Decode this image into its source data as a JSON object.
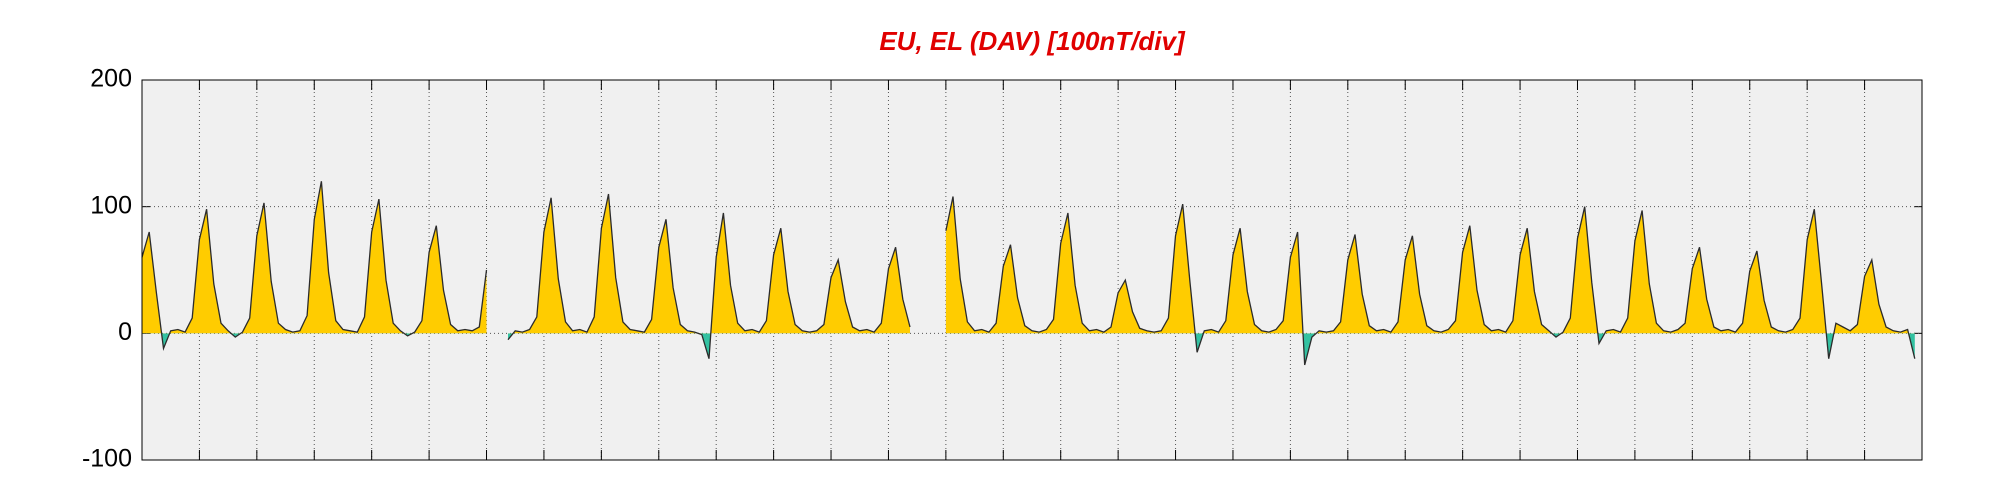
{
  "chart_data": {
    "type": "line",
    "title": "EU, EL (DAV)  [100nT/div]",
    "xlim": [
      0,
      744
    ],
    "xticks": [
      0,
      24,
      48,
      72,
      96,
      120,
      144,
      168,
      192,
      216,
      240,
      264,
      288,
      312,
      336,
      360,
      384,
      408,
      432,
      456,
      480,
      504,
      528,
      552,
      576,
      600,
      624,
      648,
      672,
      696,
      720,
      744
    ],
    "ylim": [
      -100,
      200
    ],
    "yticks": [
      -100,
      0,
      100,
      200
    ],
    "grid": true,
    "color": "#2b2b2b",
    "fill_colors": {
      "positive": "#ffcc00",
      "negative": "#33c2a2"
    },
    "x": [
      0,
      3,
      6,
      9,
      12,
      15,
      18,
      21,
      24,
      27,
      30,
      33,
      36,
      39,
      42,
      45,
      48,
      51,
      54,
      57,
      60,
      63,
      66,
      69,
      72,
      75,
      78,
      81,
      84,
      87,
      90,
      93,
      96,
      99,
      102,
      105,
      108,
      111,
      114,
      117,
      120,
      123,
      126,
      129,
      132,
      135,
      138,
      141,
      144,
      147,
      150,
      153,
      156,
      159,
      162,
      165,
      168,
      171,
      174,
      177,
      180,
      183,
      186,
      189,
      192,
      195,
      198,
      201,
      204,
      207,
      210,
      213,
      216,
      219,
      222,
      225,
      228,
      231,
      234,
      237,
      240,
      243,
      246,
      249,
      252,
      255,
      258,
      261,
      264,
      267,
      270,
      273,
      276,
      279,
      282,
      285,
      288,
      291,
      294,
      297,
      300,
      303,
      306,
      309,
      312,
      315,
      318,
      321,
      324,
      327,
      330,
      333,
      336,
      339,
      342,
      345,
      348,
      351,
      354,
      357,
      360,
      363,
      366,
      369,
      372,
      375,
      378,
      381,
      384,
      387,
      390,
      393,
      396,
      399,
      402,
      405,
      408,
      411,
      414,
      417,
      420,
      423,
      426,
      429,
      432,
      435,
      438,
      441,
      444,
      447,
      450,
      453,
      456,
      459,
      462,
      465,
      468,
      471,
      474,
      477,
      480,
      483,
      486,
      489,
      492,
      495,
      498,
      501,
      504,
      507,
      510,
      513,
      516,
      519,
      522,
      525,
      528,
      531,
      534,
      537,
      540,
      543,
      546,
      549,
      552,
      555,
      558,
      561,
      564,
      567,
      570,
      573,
      576,
      579,
      582,
      585,
      588,
      591,
      594,
      597,
      600,
      603,
      606,
      609,
      612,
      615,
      618,
      621,
      624,
      627,
      630,
      633,
      636,
      639,
      642,
      645,
      648,
      651,
      654,
      657,
      660,
      663,
      666,
      669,
      672,
      675,
      678,
      681,
      684,
      687,
      690,
      693,
      696,
      699,
      702,
      705,
      708,
      711,
      714,
      717,
      720,
      723,
      726,
      729,
      732,
      735,
      738,
      741
    ],
    "values": [
      60,
      80,
      32,
      -12,
      2,
      3,
      1,
      12,
      74,
      98,
      39,
      8,
      2,
      -3,
      1,
      12,
      77,
      103,
      41,
      8,
      3,
      1,
      2,
      14,
      90,
      120,
      48,
      10,
      3,
      2,
      1,
      13,
      80,
      106,
      42,
      8,
      2,
      -2,
      1,
      10,
      64,
      85,
      34,
      7,
      2,
      3,
      2,
      5,
      50,
      null,
      null,
      -5,
      2,
      1,
      3,
      13,
      80,
      107,
      43,
      9,
      2,
      3,
      1,
      13,
      83,
      110,
      44,
      9,
      3,
      2,
      1,
      11,
      68,
      90,
      36,
      7,
      2,
      1,
      -1,
      -20,
      60,
      95,
      38,
      8,
      2,
      3,
      1,
      10,
      62,
      83,
      33,
      7,
      2,
      1,
      2,
      7,
      44,
      58,
      25,
      5,
      2,
      3,
      1,
      8,
      51,
      68,
      27,
      5,
      null,
      null,
      null,
      null,
      81,
      108,
      43,
      9,
      2,
      3,
      1,
      8,
      53,
      70,
      28,
      6,
      2,
      1,
      3,
      11,
      71,
      95,
      38,
      8,
      2,
      3,
      1,
      5,
      32,
      42,
      17,
      4,
      2,
      1,
      2,
      12,
      77,
      102,
      41,
      -15,
      2,
      3,
      1,
      10,
      62,
      83,
      33,
      7,
      2,
      1,
      3,
      10,
      60,
      80,
      -25,
      -3,
      2,
      1,
      2,
      9,
      58,
      78,
      31,
      6,
      2,
      3,
      1,
      9,
      58,
      77,
      31,
      6,
      2,
      1,
      3,
      10,
      64,
      85,
      34,
      7,
      2,
      3,
      1,
      10,
      62,
      83,
      33,
      7,
      2,
      -3,
      1,
      12,
      75,
      100,
      40,
      -8,
      2,
      3,
      1,
      12,
      73,
      97,
      39,
      8,
      2,
      1,
      3,
      8,
      51,
      68,
      27,
      5,
      2,
      3,
      1,
      8,
      49,
      65,
      26,
      5,
      2,
      1,
      3,
      12,
      74,
      98,
      40,
      -20,
      8,
      5,
      2,
      7,
      45,
      58,
      23,
      5,
      2,
      1,
      3,
      -20
    ]
  }
}
